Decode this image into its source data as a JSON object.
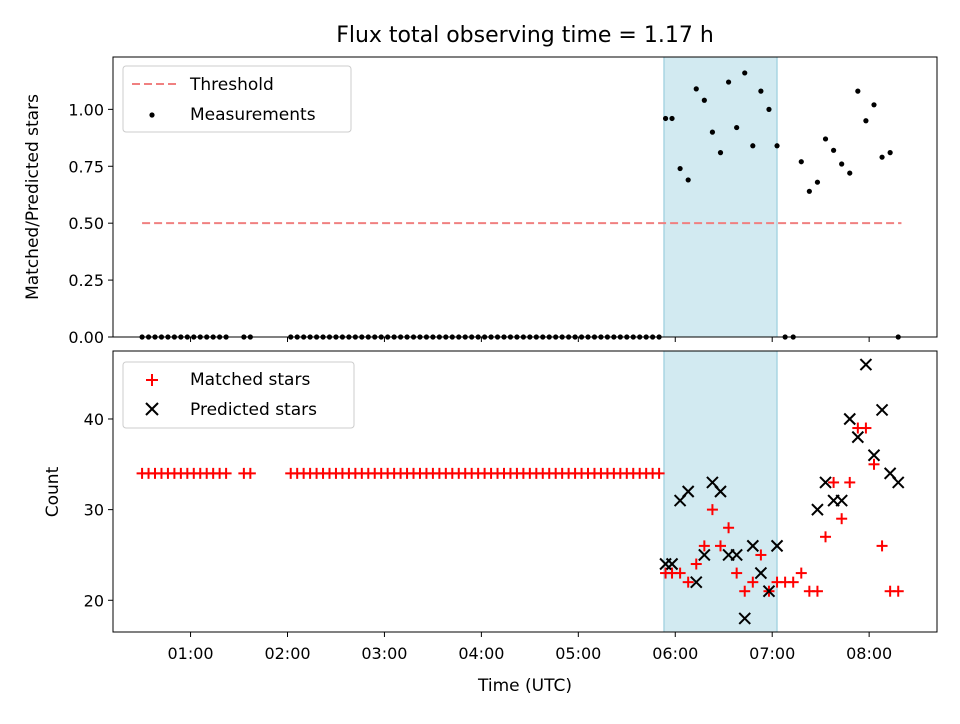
{
  "figure": {
    "title": "Flux total observing time = 1.17 h",
    "xlabel": "Time (UTC)"
  },
  "colors": {
    "threshold": "#f08080",
    "measurement": "#000000",
    "matched": "#ff0000",
    "predicted": "#000000",
    "observing_window": "#add8e6"
  },
  "chart_data": [
    {
      "type": "scatter",
      "panel": "top",
      "ylabel": "Matched/Predicted stars",
      "xlim": [
        "00:12",
        "08:42"
      ],
      "ylim": [
        0,
        1.23
      ],
      "x_ticks": [
        "01:00",
        "02:00",
        "03:00",
        "04:00",
        "05:00",
        "06:00",
        "07:00",
        "08:00"
      ],
      "show_x_tick_labels": false,
      "y_ticks": [
        "0.00",
        "0.25",
        "0.50",
        "0.75",
        "1.00"
      ],
      "grid": false,
      "legend_position": "top-left",
      "shaded_span": [
        "05:53",
        "07:03"
      ],
      "series": [
        {
          "name": "Threshold",
          "style": "dashed-line",
          "x": [
            "00:30",
            "08:20"
          ],
          "y": [
            0.5,
            0.5
          ]
        },
        {
          "name": "Measurements",
          "style": "dot",
          "x": [
            "00:30",
            "00:34",
            "00:38",
            "00:42",
            "00:46",
            "00:50",
            "00:54",
            "00:58",
            "01:02",
            "01:06",
            "01:10",
            "01:14",
            "01:18",
            "01:22",
            "01:33",
            "01:37",
            "02:02",
            "02:06",
            "02:10",
            "02:14",
            "02:18",
            "02:22",
            "02:26",
            "02:30",
            "02:34",
            "02:38",
            "02:42",
            "02:46",
            "02:50",
            "02:54",
            "02:58",
            "03:02",
            "03:06",
            "03:10",
            "03:14",
            "03:18",
            "03:22",
            "03:26",
            "03:30",
            "03:34",
            "03:38",
            "03:42",
            "03:46",
            "03:50",
            "03:54",
            "03:58",
            "04:02",
            "04:06",
            "04:10",
            "04:14",
            "04:18",
            "04:22",
            "04:26",
            "04:30",
            "04:34",
            "04:38",
            "04:42",
            "04:46",
            "04:50",
            "04:54",
            "04:58",
            "05:02",
            "05:06",
            "05:10",
            "05:14",
            "05:18",
            "05:22",
            "05:26",
            "05:30",
            "05:34",
            "05:38",
            "05:42",
            "05:46",
            "05:50",
            "05:54",
            "05:58",
            "06:03",
            "06:08",
            "06:13",
            "06:18",
            "06:23",
            "06:28",
            "06:33",
            "06:38",
            "06:43",
            "06:48",
            "06:53",
            "06:58",
            "07:03",
            "07:08",
            "07:13",
            "07:18",
            "07:23",
            "07:28",
            "07:33",
            "07:38",
            "07:43",
            "07:48",
            "07:53",
            "07:58",
            "08:03",
            "08:08",
            "08:13",
            "08:18"
          ],
          "y": [
            0,
            0,
            0,
            0,
            0,
            0,
            0,
            0,
            0,
            0,
            0,
            0,
            0,
            0,
            0,
            0,
            0,
            0,
            0,
            0,
            0,
            0,
            0,
            0,
            0,
            0,
            0,
            0,
            0,
            0,
            0,
            0,
            0,
            0,
            0,
            0,
            0,
            0,
            0,
            0,
            0,
            0,
            0,
            0,
            0,
            0,
            0,
            0,
            0,
            0,
            0,
            0,
            0,
            0,
            0,
            0,
            0,
            0,
            0,
            0,
            0,
            0,
            0,
            0,
            0,
            0,
            0,
            0,
            0,
            0,
            0,
            0,
            0,
            0,
            0.96,
            0.96,
            0.74,
            0.69,
            1.09,
            1.04,
            0.9,
            0.81,
            1.12,
            0.92,
            1.16,
            0.84,
            1.08,
            1.0,
            0.84,
            0,
            0,
            0.77,
            0.64,
            0.68,
            0.87,
            0.82,
            0.76,
            0.72,
            1.08,
            0.95,
            1.02,
            0.79,
            0.81,
            0
          ]
        }
      ]
    },
    {
      "type": "scatter",
      "panel": "bottom",
      "ylabel": "Count",
      "xlabel": "Time (UTC)",
      "xlim": [
        "00:12",
        "08:42"
      ],
      "ylim": [
        16.5,
        47.5
      ],
      "x_ticks": [
        "01:00",
        "02:00",
        "03:00",
        "04:00",
        "05:00",
        "06:00",
        "07:00",
        "08:00"
      ],
      "y_ticks": [
        "20",
        "30",
        "40"
      ],
      "grid": false,
      "legend_position": "top-left",
      "shaded_span": [
        "05:53",
        "07:03"
      ],
      "series": [
        {
          "name": "Matched stars",
          "style": "plus",
          "x": [
            "00:30",
            "00:34",
            "00:38",
            "00:42",
            "00:46",
            "00:50",
            "00:54",
            "00:58",
            "01:02",
            "01:06",
            "01:10",
            "01:14",
            "01:18",
            "01:22",
            "01:33",
            "01:37",
            "02:02",
            "02:06",
            "02:10",
            "02:14",
            "02:18",
            "02:22",
            "02:26",
            "02:30",
            "02:34",
            "02:38",
            "02:42",
            "02:46",
            "02:50",
            "02:54",
            "02:58",
            "03:02",
            "03:06",
            "03:10",
            "03:14",
            "03:18",
            "03:22",
            "03:26",
            "03:30",
            "03:34",
            "03:38",
            "03:42",
            "03:46",
            "03:50",
            "03:54",
            "03:58",
            "04:02",
            "04:06",
            "04:10",
            "04:14",
            "04:18",
            "04:22",
            "04:26",
            "04:30",
            "04:34",
            "04:38",
            "04:42",
            "04:46",
            "04:50",
            "04:54",
            "04:58",
            "05:02",
            "05:06",
            "05:10",
            "05:14",
            "05:18",
            "05:22",
            "05:26",
            "05:30",
            "05:34",
            "05:38",
            "05:42",
            "05:46",
            "05:50",
            "05:54",
            "05:58",
            "06:03",
            "06:08",
            "06:13",
            "06:18",
            "06:23",
            "06:28",
            "06:33",
            "06:38",
            "06:43",
            "06:48",
            "06:53",
            "06:58",
            "07:03",
            "07:08",
            "07:13",
            "07:18",
            "07:23",
            "07:28",
            "07:33",
            "07:38",
            "07:43",
            "07:48",
            "07:53",
            "07:58",
            "08:03",
            "08:08",
            "08:13",
            "08:18"
          ],
          "y": [
            34,
            34,
            34,
            34,
            34,
            34,
            34,
            34,
            34,
            34,
            34,
            34,
            34,
            34,
            34,
            34,
            34,
            34,
            34,
            34,
            34,
            34,
            34,
            34,
            34,
            34,
            34,
            34,
            34,
            34,
            34,
            34,
            34,
            34,
            34,
            34,
            34,
            34,
            34,
            34,
            34,
            34,
            34,
            34,
            34,
            34,
            34,
            34,
            34,
            34,
            34,
            34,
            34,
            34,
            34,
            34,
            34,
            34,
            34,
            34,
            34,
            34,
            34,
            34,
            34,
            34,
            34,
            34,
            34,
            34,
            34,
            34,
            34,
            34,
            23,
            23,
            23,
            22,
            24,
            26,
            30,
            26,
            28,
            23,
            21,
            22,
            25,
            21,
            22,
            22,
            22,
            23,
            21,
            21,
            27,
            33,
            29,
            33,
            39,
            39,
            35,
            26,
            21,
            21
          ]
        },
        {
          "name": "Predicted stars",
          "style": "x",
          "x": [
            "05:54",
            "05:58",
            "06:03",
            "06:08",
            "06:13",
            "06:18",
            "06:23",
            "06:28",
            "06:33",
            "06:38",
            "06:43",
            "06:48",
            "06:53",
            "06:58",
            "07:03",
            "07:28",
            "07:33",
            "07:38",
            "07:43",
            "07:48",
            "07:53",
            "07:58",
            "08:03",
            "08:08",
            "08:13",
            "08:18"
          ],
          "y": [
            24,
            24,
            31,
            32,
            22,
            25,
            33,
            32,
            25,
            25,
            18,
            26,
            23,
            21,
            26,
            30,
            33,
            31,
            31,
            40,
            38,
            46,
            36,
            41,
            34,
            33
          ]
        }
      ]
    }
  ]
}
